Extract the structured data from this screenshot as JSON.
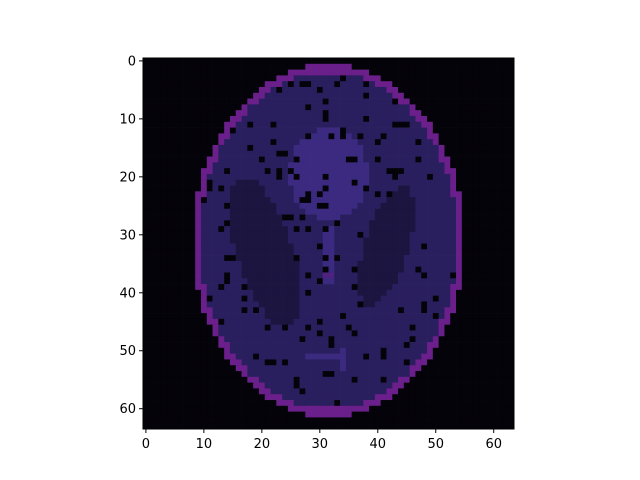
{
  "chart_data": {
    "type": "heatmap",
    "title": "",
    "xlabel": "",
    "ylabel": "",
    "grid": false,
    "legend": "none",
    "image_shape": [
      64,
      64
    ],
    "value_range": [
      0,
      1
    ],
    "xlim": [
      -0.5,
      63.5
    ],
    "ylim": [
      63.5,
      -0.5
    ],
    "y_axis_inverted": true,
    "x_ticks": [
      {
        "value": 0,
        "label": "0"
      },
      {
        "value": 10,
        "label": "10"
      },
      {
        "value": 20,
        "label": "20"
      },
      {
        "value": 30,
        "label": "30"
      },
      {
        "value": 40,
        "label": "40"
      },
      {
        "value": 50,
        "label": "50"
      },
      {
        "value": 60,
        "label": "60"
      }
    ],
    "y_ticks": [
      {
        "value": 0,
        "label": "0"
      },
      {
        "value": 10,
        "label": "10"
      },
      {
        "value": 20,
        "label": "20"
      },
      {
        "value": 30,
        "label": "30"
      },
      {
        "value": 40,
        "label": "40"
      },
      {
        "value": 50,
        "label": "50"
      },
      {
        "value": 60,
        "label": "60"
      }
    ],
    "colormap": [
      "#040309",
      "#1c1540",
      "#2a1f5e",
      "#3b2a80",
      "#4e2380",
      "#6a1f8a"
    ],
    "ellipses": [
      {
        "cx": 31.5,
        "cy": 31,
        "rx": 23.4,
        "ry": 30.5,
        "angle": 0,
        "value": 1.0
      },
      {
        "cx": 31.5,
        "cy": 31,
        "rx": 22.2,
        "ry": 29.0,
        "angle": 0,
        "value": -0.75
      },
      {
        "cx": 20.5,
        "cy": 33,
        "rx": 4.8,
        "ry": 13.5,
        "angle": -18,
        "value": -0.2
      },
      {
        "cx": 41.5,
        "cy": 32,
        "rx": 3.8,
        "ry": 10.8,
        "angle": 18,
        "value": -0.2
      },
      {
        "cx": 31.5,
        "cy": 19.5,
        "rx": 6.8,
        "ry": 8.0,
        "angle": 0,
        "value": 0.12
      },
      {
        "cx": 31.5,
        "cy": 33,
        "rx": 1.3,
        "ry": 4.5,
        "angle": 0,
        "value": 0.08
      },
      {
        "cx": 31.5,
        "cy": 37.5,
        "rx": 0.9,
        "ry": 0.9,
        "angle": 0,
        "value": 0.06
      },
      {
        "cx": 31.0,
        "cy": 51.2,
        "rx": 3.2,
        "ry": 0.6,
        "angle": 0,
        "value": 0.06
      },
      {
        "cx": 34.0,
        "cy": 51.5,
        "rx": 0.9,
        "ry": 1.5,
        "angle": 0,
        "value": 0.06
      }
    ],
    "noise": {
      "seed": 7,
      "dropout_fraction": 0.08,
      "dropout_value": 0.0
    }
  }
}
